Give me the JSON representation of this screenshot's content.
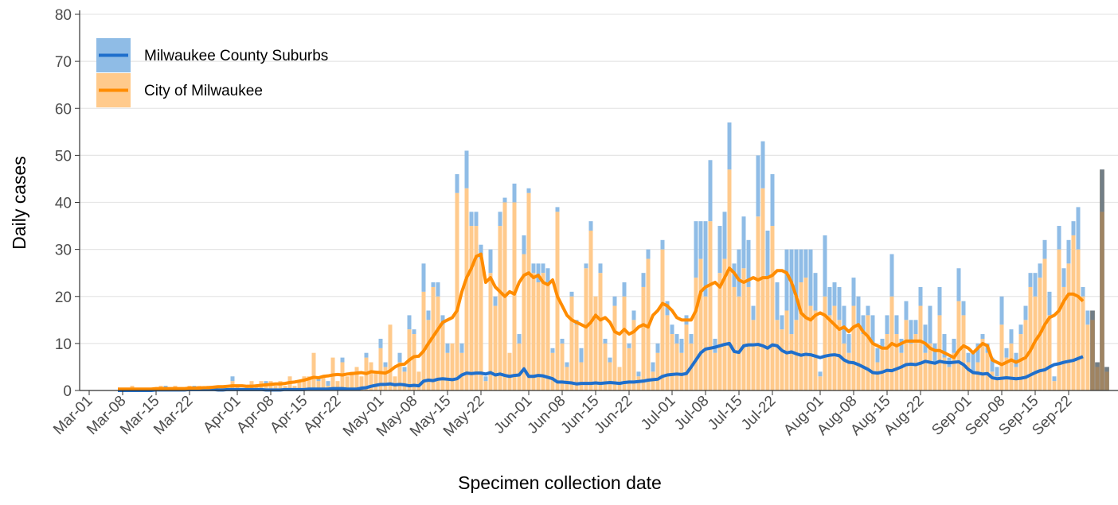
{
  "chart_data": {
    "type": "stacked-bar-line",
    "x_label": "Specimen collection date",
    "y_label": "Daily cases",
    "ylim": [
      0,
      80
    ],
    "yticks": [
      0,
      10,
      20,
      30,
      40,
      50,
      60,
      70,
      80
    ],
    "grid": true,
    "legend": "top-left",
    "shaded_last_days": 4,
    "shade_color": "rgba(95,85,70,0.6)",
    "categories": [
      "Mar-01",
      null,
      null,
      null,
      null,
      null,
      null,
      "Mar-08",
      null,
      null,
      null,
      null,
      null,
      null,
      "Mar-15",
      null,
      null,
      null,
      null,
      null,
      null,
      "Mar-22",
      null,
      null,
      null,
      null,
      null,
      null,
      null,
      null,
      null,
      "Apr-01",
      null,
      null,
      null,
      null,
      null,
      null,
      "Apr-08",
      null,
      null,
      null,
      null,
      null,
      null,
      "Apr-15",
      null,
      null,
      null,
      null,
      null,
      null,
      "Apr-22",
      null,
      null,
      null,
      null,
      null,
      null,
      null,
      null,
      "May-01",
      null,
      null,
      null,
      null,
      null,
      null,
      "May-08",
      null,
      null,
      null,
      null,
      null,
      null,
      "May-15",
      null,
      null,
      null,
      null,
      null,
      null,
      "May-22",
      null,
      null,
      null,
      null,
      null,
      null,
      null,
      null,
      null,
      "Jun-01",
      null,
      null,
      null,
      null,
      null,
      null,
      "Jun-08",
      null,
      null,
      null,
      null,
      null,
      null,
      "Jun-15",
      null,
      null,
      null,
      null,
      null,
      null,
      "Jun-22",
      null,
      null,
      null,
      null,
      null,
      null,
      null,
      null,
      "Jul-01",
      null,
      null,
      null,
      null,
      null,
      null,
      "Jul-08",
      null,
      null,
      null,
      null,
      null,
      null,
      "Jul-15",
      null,
      null,
      null,
      null,
      null,
      null,
      "Jul-22",
      null,
      null,
      null,
      null,
      null,
      null,
      null,
      null,
      null,
      "Aug-01",
      null,
      null,
      null,
      null,
      null,
      null,
      "Aug-08",
      null,
      null,
      null,
      null,
      null,
      null,
      "Aug-15",
      null,
      null,
      null,
      null,
      null,
      null,
      "Aug-22",
      null,
      null,
      null,
      null,
      null,
      null,
      null,
      null,
      null,
      "Sep-01",
      null,
      null,
      null,
      null,
      null,
      null,
      "Sep-08",
      null,
      null,
      null,
      null,
      null,
      null,
      "Sep-15",
      null,
      null,
      null,
      null,
      null,
      null,
      "Sep-22",
      null,
      null,
      null,
      null,
      null,
      null,
      null,
      null
    ],
    "series": [
      {
        "name": "Milwaukee County Suburbs",
        "bar_color": "#8fbce6",
        "color": "#1f6fcc",
        "values": [
          0,
          0,
          0,
          0,
          0,
          0,
          0,
          0,
          0,
          0,
          0,
          0,
          0,
          0,
          0,
          0,
          1,
          0,
          0,
          0,
          0,
          0,
          1,
          0,
          0,
          0,
          0,
          0,
          0,
          0,
          1,
          0,
          0,
          0,
          0,
          0,
          0,
          1,
          0,
          0,
          0,
          0,
          0,
          0,
          0,
          0,
          0,
          0,
          1,
          0,
          1,
          0,
          0,
          1,
          0,
          0,
          0,
          0,
          1,
          0,
          0,
          2,
          1,
          0,
          0,
          2,
          1,
          3,
          1,
          0,
          6,
          2,
          1,
          3,
          2,
          2,
          0,
          4,
          2,
          8,
          3,
          3,
          3,
          1,
          5,
          2,
          3,
          1,
          0,
          4,
          2,
          4,
          1,
          2,
          4,
          2,
          3,
          1,
          1,
          1,
          1,
          1,
          1,
          3,
          1,
          2,
          0,
          2,
          1,
          1,
          2,
          0,
          3,
          1,
          2,
          1,
          3,
          2,
          2,
          2,
          2,
          3,
          2,
          2,
          3,
          2,
          2,
          12,
          8,
          16,
          13,
          3,
          10,
          10,
          10,
          5,
          10,
          11,
          10,
          3,
          13,
          10,
          10,
          11,
          8,
          3,
          13,
          18,
          15,
          7,
          6,
          12,
          8,
          1,
          13,
          6,
          5,
          7,
          8,
          4,
          6,
          6,
          4,
          2,
          6,
          3,
          2,
          4,
          9,
          4,
          3,
          4,
          5,
          3,
          4,
          6,
          8,
          4,
          6,
          5,
          2,
          3,
          7,
          3,
          2,
          4,
          4,
          1,
          2,
          3,
          2,
          6,
          2,
          3,
          3,
          2,
          3,
          3,
          5,
          3,
          4,
          5,
          1,
          5,
          4,
          5,
          3,
          9,
          2,
          3,
          2,
          1,
          9,
          1
        ],
        "rolling": [
          null,
          null,
          null,
          null,
          null,
          null,
          0,
          0,
          0,
          0,
          0,
          0,
          0,
          0,
          0.1,
          0.1,
          0.1,
          0.1,
          0.1,
          0.1,
          0.1,
          0.2,
          0.2,
          0.2,
          0.2,
          0.2,
          0.2,
          0.1,
          0.1,
          0.2,
          0.2,
          0.2,
          0.2,
          0.2,
          0.2,
          0.2,
          0.2,
          0.1,
          0.1,
          0.1,
          0.1,
          0.2,
          0.2,
          0.2,
          0.2,
          0.2,
          0.3,
          0.3,
          0.3,
          0.3,
          0.3,
          0.4,
          0.4,
          0.4,
          0.3,
          0.3,
          0.3,
          0.5,
          0.6,
          0.9,
          1.1,
          1.3,
          1.3,
          1.4,
          1.2,
          1.3,
          1.2,
          1,
          1.1,
          1,
          2,
          2.2,
          2.1,
          2.4,
          2.5,
          2.4,
          2.3,
          2.5,
          3.3,
          3.7,
          3.6,
          3.7,
          3.7,
          3.5,
          3.8,
          3.3,
          3.5,
          3.2,
          3,
          3.2,
          3.3,
          4.6,
          3,
          3,
          3.2,
          3.1,
          2.8,
          2.5,
          1.8,
          1.8,
          1.7,
          1.6,
          1.4,
          1.5,
          1.5,
          1.5,
          1.6,
          1.5,
          1.6,
          1.7,
          1.6,
          1.5,
          1.7,
          1.8,
          1.8,
          1.9,
          2,
          2.2,
          2.3,
          2.4,
          3,
          3.3,
          3.4,
          3.5,
          3.4,
          3.6,
          5,
          6.5,
          8,
          8.8,
          9,
          9.2,
          9.5,
          9.8,
          10,
          8.3,
          8.1,
          9.5,
          9.7,
          9.7,
          9.8,
          9.5,
          9,
          9.7,
          9.5,
          8.5,
          8,
          8.2,
          7.8,
          7.5,
          7.7,
          7.6,
          7.3,
          7,
          7.3,
          7.5,
          7.6,
          7.4,
          6.5,
          6,
          5.9,
          5.5,
          5,
          4.5,
          3.8,
          3.7,
          3.9,
          4.3,
          4.2,
          4.6,
          5,
          5.5,
          5.6,
          5.5,
          5.8,
          6.2,
          6,
          5.8,
          6.2,
          6,
          5.9,
          6,
          6.1,
          5.5,
          4.5,
          3.8,
          3.7,
          3.5,
          3.6,
          2.7,
          2.5,
          2.6,
          2.7,
          2.6,
          2.5,
          2.6,
          2.8,
          3.3,
          3.8,
          4.2,
          4.4,
          5,
          5.5,
          5.7,
          6,
          6.2,
          6.4,
          6.8,
          7.2,
          null,
          null,
          null,
          null,
          null
        ]
      },
      {
        "name": "City of Milwaukee",
        "bar_color": "#ffca8c",
        "color": "#ff8c00",
        "values": [
          0,
          0,
          0,
          0,
          0,
          0,
          0,
          0,
          0,
          1,
          0,
          0,
          0,
          0,
          0,
          1,
          0,
          0,
          1,
          0,
          0,
          1,
          0,
          1,
          0,
          1,
          0,
          1,
          1,
          0,
          2,
          1,
          0,
          1,
          2,
          1,
          2,
          1,
          2,
          1,
          2,
          1,
          3,
          1,
          2,
          3,
          3,
          8,
          2,
          3,
          1,
          7,
          2,
          6,
          3,
          4,
          5,
          3,
          7,
          6,
          4,
          9,
          5,
          14,
          3,
          6,
          4,
          13,
          12,
          4,
          21,
          15,
          22,
          20,
          14,
          8,
          10,
          42,
          8,
          43,
          35,
          35,
          28,
          2,
          25,
          18,
          35,
          40,
          8,
          40,
          10,
          29,
          42,
          25,
          23,
          25,
          23,
          8,
          38,
          10,
          5,
          20,
          14,
          6,
          26,
          34,
          20,
          25,
          10,
          6,
          18,
          5,
          20,
          9,
          15,
          3,
          22,
          28,
          4,
          8,
          30,
          16,
          12,
          10,
          8,
          14,
          10,
          24,
          28,
          20,
          36,
          8,
          25,
          28,
          47,
          22,
          20,
          26,
          22,
          15,
          37,
          43,
          24,
          35,
          15,
          13,
          17,
          12,
          15,
          23,
          24,
          18,
          17,
          3,
          20,
          16,
          18,
          15,
          10,
          8,
          18,
          14,
          12,
          16,
          10,
          6,
          9,
          12,
          20,
          12,
          8,
          15,
          10,
          12,
          18,
          8,
          10,
          6,
          16,
          7,
          5,
          8,
          19,
          16,
          6,
          4,
          6,
          11,
          8,
          4,
          3,
          14,
          7,
          10,
          5,
          12,
          15,
          22,
          20,
          24,
          28,
          16,
          2,
          30,
          22,
          27,
          33,
          30,
          20,
          14,
          15,
          5,
          38,
          4
        ],
        "rolling": [
          null,
          null,
          null,
          null,
          null,
          null,
          0.3,
          0.3,
          0.3,
          0.3,
          0.3,
          0.3,
          0.3,
          0.3,
          0.4,
          0.4,
          0.4,
          0.4,
          0.4,
          0.4,
          0.4,
          0.5,
          0.5,
          0.5,
          0.6,
          0.6,
          0.7,
          0.8,
          0.8,
          0.9,
          1,
          1,
          1,
          0.9,
          0.9,
          1,
          1.1,
          1.2,
          1.3,
          1.4,
          1.4,
          1.5,
          1.7,
          1.8,
          2,
          2.2,
          2.5,
          2.8,
          2.7,
          3,
          3.1,
          3.3,
          3.4,
          3.3,
          3.5,
          3.6,
          3.7,
          3.8,
          3.6,
          4,
          3.9,
          3.8,
          3.7,
          4.2,
          5,
          5.5,
          5.6,
          6.5,
          7.2,
          7.3,
          8.4,
          10,
          11.5,
          13,
          14.5,
          15,
          15.5,
          17,
          21,
          24,
          26,
          28.5,
          29,
          23,
          24,
          22,
          21,
          20,
          21,
          20.5,
          23,
          24.5,
          25,
          24,
          24.5,
          23,
          22.5,
          23.5,
          20,
          18,
          16,
          15,
          14.5,
          14,
          13.5,
          14.5,
          16,
          15,
          15.5,
          14.5,
          12.5,
          12,
          13,
          12,
          12.5,
          13.5,
          14,
          13.5,
          16,
          17,
          18.5,
          18,
          17,
          15.5,
          15,
          15,
          15,
          17,
          21,
          22,
          22.5,
          23,
          22,
          24,
          26,
          25,
          23.5,
          23,
          23.5,
          24,
          23.5,
          24,
          24,
          24.5,
          25.5,
          25.5,
          25,
          23,
          20,
          16.5,
          15.5,
          15,
          16,
          16.5,
          16,
          15,
          14,
          13,
          13.5,
          12.5,
          13.5,
          14,
          12.5,
          11.5,
          10,
          9.5,
          9,
          9,
          10,
          9.5,
          10,
          10.5,
          10.5,
          10.5,
          10.5,
          10,
          9,
          8.5,
          8.5,
          8,
          7.5,
          7,
          8.5,
          9.5,
          9,
          8,
          9,
          10,
          9.5,
          6.5,
          6,
          5.5,
          6,
          6.5,
          6,
          6.5,
          7,
          8.5,
          10.5,
          12,
          14,
          15.5,
          16,
          17,
          19,
          20.5,
          20.5,
          20,
          19,
          null,
          null,
          null,
          null,
          null
        ]
      }
    ]
  }
}
